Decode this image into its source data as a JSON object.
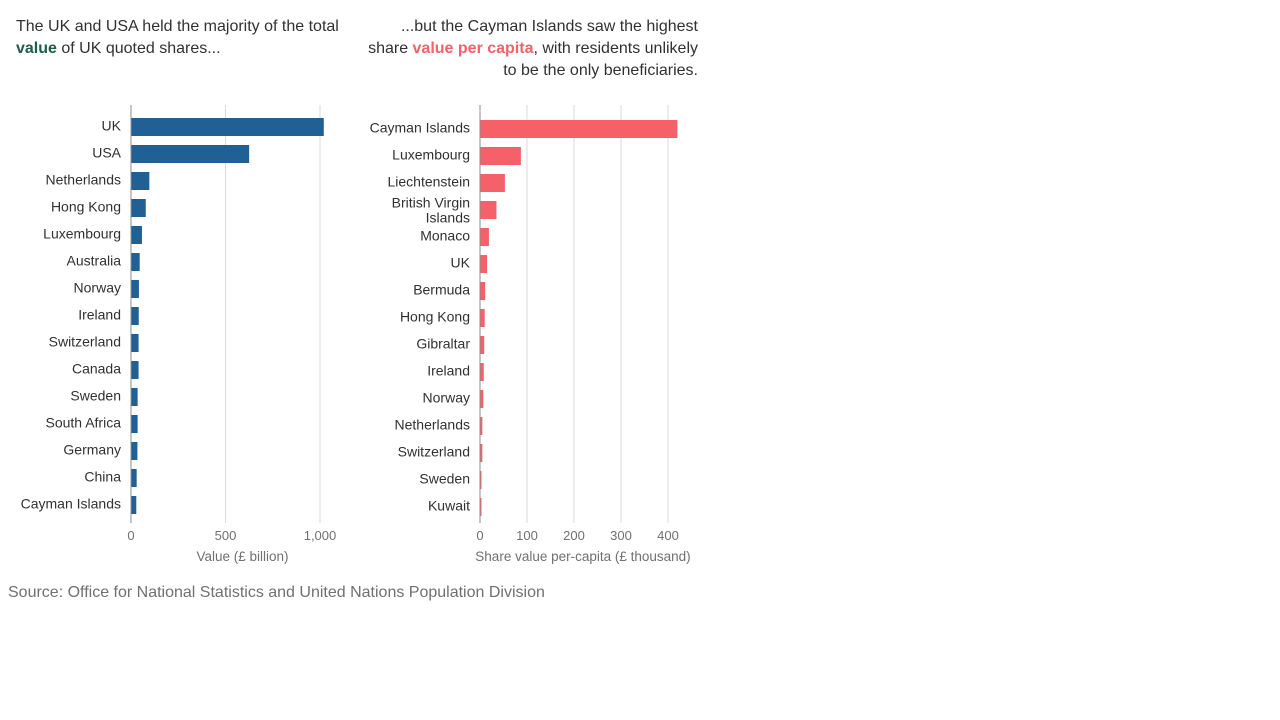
{
  "captions": {
    "left": {
      "pre": "The UK and USA held the majority of the total ",
      "highlight": "value",
      "post": " of UK quoted shares..."
    },
    "right": {
      "pre": "...but the Cayman Islands saw the highest share ",
      "highlight": "value per capita",
      "post": ", with residents unlikely to be the only beneficiaries."
    }
  },
  "source": "Source: Office for National Statistics and United Nations Population Division",
  "chart_data": [
    {
      "type": "bar",
      "orientation": "horizontal",
      "color": "#206095",
      "categories": [
        "UK",
        "USA",
        "Netherlands",
        "Hong Kong",
        "Luxembourg",
        "Australia",
        "Norway",
        "Ireland",
        "Switzerland",
        "Canada",
        "Sweden",
        "South Africa",
        "Germany",
        "China",
        "Cayman Islands"
      ],
      "values": [
        1020,
        625,
        97,
        78,
        58,
        46,
        42,
        41,
        40,
        40,
        35,
        35,
        34,
        30,
        28
      ],
      "xlabel": "Value (£ billion)",
      "xlim": [
        0,
        1050
      ],
      "xticks": [
        0,
        500,
        1000
      ],
      "xtick_labels": [
        "0",
        "500",
        "1,000"
      ],
      "grid": true
    },
    {
      "type": "bar",
      "orientation": "horizontal",
      "color": "#f66068",
      "categories": [
        "Cayman Islands",
        "Luxembourg",
        "Liechtenstein",
        "British Virgin Islands",
        "Monaco",
        "UK",
        "Bermuda",
        "Hong Kong",
        "Gibraltar",
        "Ireland",
        "Norway",
        "Netherlands",
        "Switzerland",
        "Sweden",
        "Kuwait"
      ],
      "values": [
        420,
        87,
        53,
        35,
        19,
        15,
        11,
        10,
        9,
        8,
        7,
        5,
        5,
        3,
        2
      ],
      "xlabel": "Share value per-capita (£ thousand)",
      "xlim": [
        0,
        430
      ],
      "xticks": [
        0,
        100,
        200,
        300,
        400
      ],
      "xtick_labels": [
        "0",
        "100",
        "200",
        "300",
        "400"
      ],
      "grid": true
    }
  ]
}
